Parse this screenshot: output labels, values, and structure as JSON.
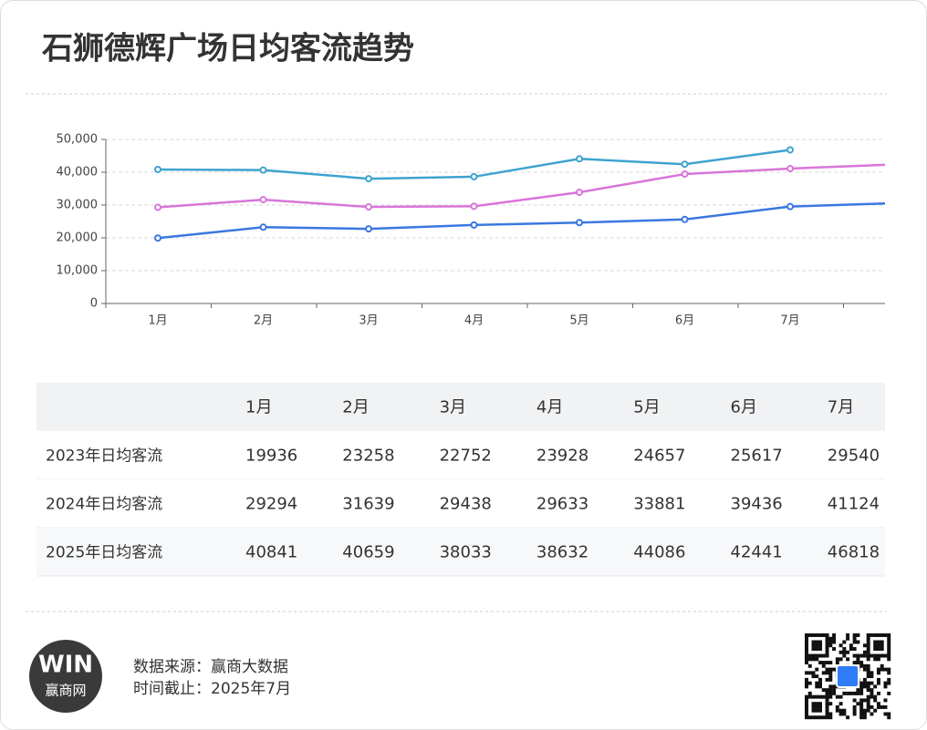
{
  "title": "石狮德辉广场日均客流趋势",
  "chart_data": {
    "type": "line",
    "categories": [
      "1月",
      "2月",
      "3月",
      "4月",
      "5月",
      "6月",
      "7月",
      null
    ],
    "series": [
      {
        "name": "2023年日均客流",
        "color": "#3a78e0",
        "values": [
          19936,
          23258,
          22752,
          23928,
          24657,
          25617,
          29540,
          30600
        ]
      },
      {
        "name": "2024年日均客流",
        "color": "#d975d9",
        "values": [
          29294,
          31639,
          29438,
          29633,
          33881,
          39436,
          41124,
          42400
        ]
      },
      {
        "name": "2025年日均客流",
        "color": "#3ea3cf",
        "values": [
          40841,
          40659,
          38033,
          38632,
          44086,
          42441,
          46818,
          null
        ]
      }
    ],
    "ylim": [
      0,
      50000
    ],
    "yticks": [
      0,
      {
        "value": 10000,
        "label": "10,000"
      },
      {
        "value": 20000,
        "label": "20,000"
      },
      {
        "value": 30000,
        "label": "30,000"
      },
      {
        "value": 40000,
        "label": "40,000"
      },
      {
        "value": 50000,
        "label": "50,000"
      }
    ],
    "grid": true
  },
  "footer": {
    "source": "数据来源：赢商大数据",
    "date": "时间截止：2025年7月",
    "logo_mark": "WIN",
    "logo_name": "赢商网"
  }
}
